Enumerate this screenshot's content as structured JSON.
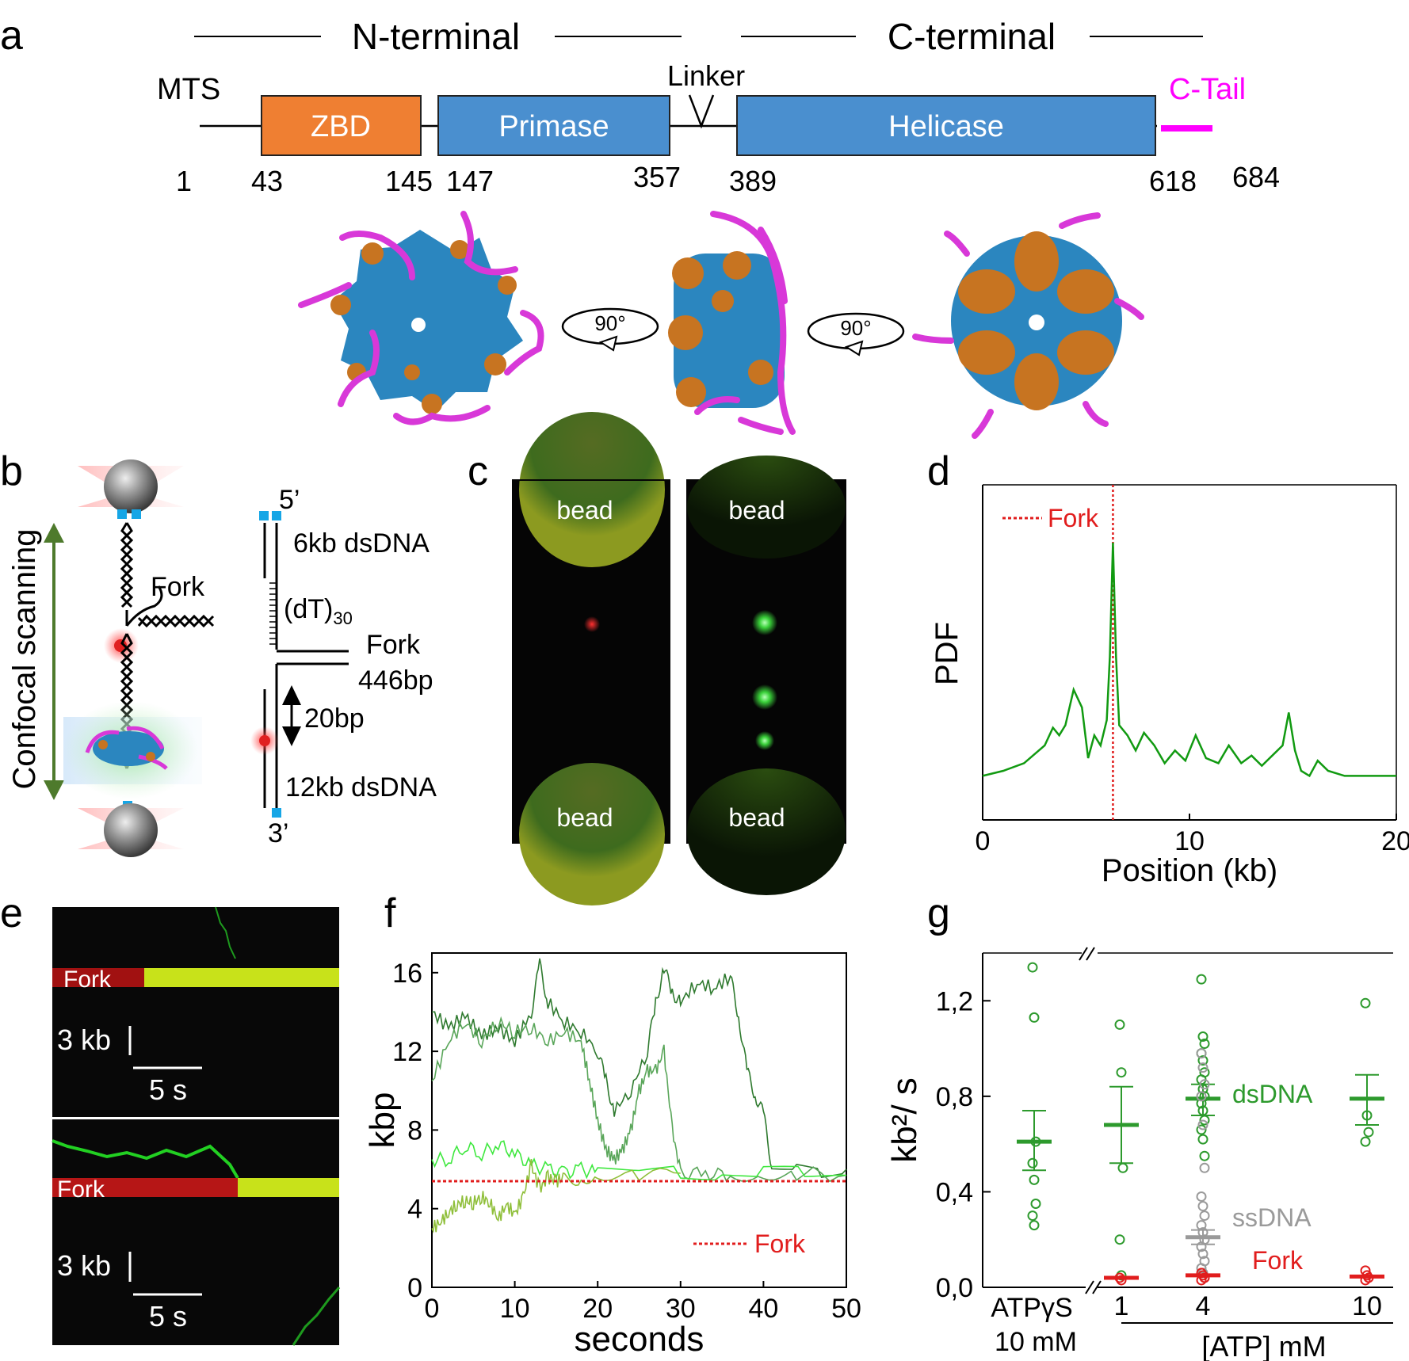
{
  "panels": {
    "a": "a",
    "b": "b",
    "c": "c",
    "d": "d",
    "e": "e",
    "f": "f",
    "g": "g"
  },
  "panel_a": {
    "n_terminal": "N-terminal",
    "c_terminal": "C-terminal",
    "mts": "MTS",
    "linker": "Linker",
    "c_tail": "C-Tail",
    "domains": {
      "zbd": "ZBD",
      "primase": "Primase",
      "helicase": "Helicase"
    },
    "positions": [
      "1",
      "43",
      "145",
      "147",
      "357",
      "389",
      "618",
      "684"
    ],
    "rotation": "90°",
    "colors": {
      "zbd": "#ef7f32",
      "primase": "#4a8fcf",
      "helicase": "#4a8fcf",
      "c_tail": "#ff00ff",
      "struct_blue": "#2b86bf",
      "struct_orange": "#c77421"
    }
  },
  "panel_b": {
    "confocal": "Confocal scanning",
    "fork": "Fork",
    "five_prime": "5’",
    "three_prime": "3’",
    "ds6": "6kb dsDNA",
    "dt_base": "(dT)",
    "dt_sub": "30",
    "fork_label": "Fork",
    "fork_bp": "446bp",
    "bp20": "20bp",
    "ds12": "12kb dsDNA"
  },
  "panel_c": {
    "bead": "bead"
  },
  "panel_d": {
    "legend": "Fork",
    "chart_data": {
      "type": "line",
      "xlabel": "Position (kb)",
      "ylabel": "PDF",
      "xlim": [
        0,
        20
      ],
      "xticks": [
        "0",
        "10",
        "20"
      ],
      "fork_position": 6.3,
      "series": [
        {
          "x": [
            0,
            1,
            2,
            3,
            3.4,
            3.7,
            4.0,
            4.4,
            4.8,
            5.1,
            5.4,
            5.7,
            6.0,
            6.15,
            6.3,
            6.45,
            6.6,
            7.0,
            7.4,
            7.8,
            8.3,
            8.8,
            9.3,
            9.8,
            10.3,
            10.8,
            11.4,
            11.9,
            12.5,
            13.0,
            13.5,
            14.0,
            14.5,
            14.8,
            15.1,
            15.4,
            15.8,
            16.2,
            16.7,
            17.5,
            18.5,
            20
          ],
          "y": [
            0.08,
            0.1,
            0.13,
            0.2,
            0.27,
            0.24,
            0.28,
            0.42,
            0.35,
            0.15,
            0.24,
            0.2,
            0.3,
            0.55,
            1.0,
            0.55,
            0.28,
            0.24,
            0.18,
            0.25,
            0.2,
            0.13,
            0.18,
            0.14,
            0.24,
            0.15,
            0.13,
            0.2,
            0.13,
            0.16,
            0.12,
            0.16,
            0.2,
            0.33,
            0.18,
            0.1,
            0.08,
            0.14,
            0.1,
            0.08,
            0.08,
            0.08
          ]
        }
      ],
      "colors": {
        "line": "#119a11",
        "fork": "#e11d1d"
      }
    }
  },
  "panel_e": {
    "fork": "Fork",
    "scale_kb": "3 kb",
    "scale_s": "5 s"
  },
  "panel_f": {
    "legend": "Fork",
    "chart_data": {
      "type": "line",
      "xlabel": "seconds",
      "ylabel": "kbp",
      "xlim": [
        0,
        50
      ],
      "ylim": [
        0,
        17
      ],
      "xticks": [
        "0",
        "10",
        "20",
        "30",
        "40",
        "50"
      ],
      "yticks": [
        "0",
        "4",
        "8",
        "12",
        "16"
      ],
      "fork_level": 5.4,
      "series": [
        {
          "x": [
            0,
            2,
            4,
            6,
            8,
            10,
            12,
            13,
            14,
            16,
            18,
            20,
            21,
            22,
            24,
            26,
            27,
            28,
            29,
            30,
            32,
            34,
            36,
            37,
            38,
            39,
            40,
            41,
            44,
            47,
            50
          ],
          "y": [
            14,
            13.2,
            13.8,
            12.8,
            13.2,
            12.5,
            14,
            16.4,
            14.5,
            13.5,
            13,
            12,
            10.5,
            9,
            10,
            12,
            14.5,
            16.2,
            15,
            14.5,
            15.5,
            15.2,
            15.8,
            13.8,
            11,
            9.8,
            8.8,
            6.2,
            6,
            5.9,
            6
          ],
          "color": "#2f7a2f"
        },
        {
          "x": [
            0,
            2,
            4,
            6,
            8,
            10,
            12,
            14,
            16,
            18,
            19,
            20,
            21,
            22,
            23,
            24,
            25,
            26,
            27,
            28,
            29,
            30,
            33,
            36,
            40,
            44,
            50
          ],
          "y": [
            10.5,
            12.5,
            13.5,
            12.5,
            13.5,
            13,
            13.2,
            12.5,
            13,
            12.5,
            10.5,
            8.5,
            7,
            6.5,
            7,
            8,
            10,
            11,
            11,
            12,
            8,
            5.8,
            5.8,
            5.7,
            5.8,
            5.8,
            5.7
          ],
          "color": "#5aa65a"
        },
        {
          "x": [
            0,
            2,
            4,
            6,
            8,
            10,
            12,
            14,
            16,
            18,
            20,
            25,
            30,
            35,
            40,
            45,
            50
          ],
          "y": [
            6.5,
            6.5,
            7.2,
            6.8,
            7.3,
            6.8,
            6.2,
            6,
            5.8,
            6,
            5.8,
            5.8,
            5.9,
            5.7,
            5.8,
            5.8,
            5.7
          ],
          "color": "#3fe83f"
        },
        {
          "x": [
            0,
            1,
            2,
            3,
            4,
            5,
            6,
            7,
            8,
            9,
            10,
            11,
            12,
            13,
            14,
            15,
            16,
            18,
            20,
            25,
            30
          ],
          "y": [
            3,
            3.3,
            3.8,
            4.2,
            4.4,
            4.3,
            4.6,
            4.3,
            3.5,
            4.2,
            3.7,
            4.6,
            6.2,
            5,
            5.6,
            5.4,
            5.6,
            5.5,
            5.8,
            5.6,
            5.8
          ],
          "color": "#8fbf3a"
        }
      ],
      "colors": {
        "fork": "#e11d1d"
      }
    }
  },
  "panel_g": {
    "labels": {
      "dsDNA": "dsDNA",
      "ssDNA": "ssDNA",
      "Fork": "Fork"
    },
    "cat_atpgs_1": "ATPγS",
    "cat_atpgs_2": "10 mM",
    "atp_axis": "[ATP] mM",
    "chart_data": {
      "type": "scatter",
      "ylabel": "kb²/ s",
      "ylim": [
        0,
        1.4
      ],
      "yticks": [
        "0,0",
        "0,4",
        "0,8",
        "1,2"
      ],
      "categories": [
        "ATPγS 10 mM",
        "1",
        "4",
        "10"
      ],
      "series": [
        {
          "name": "dsDNA",
          "points": {
            "ATPγS 10 mM": [
              1.34,
              1.13,
              0.61,
              0.52,
              0.45,
              0.35,
              0.3,
              0.26
            ],
            "1": [
              1.1,
              0.9,
              0.5,
              0.2,
              0.05
            ],
            "4": [
              1.29,
              1.05,
              1.02,
              0.98,
              0.95,
              0.9,
              0.87,
              0.83,
              0.8,
              0.77,
              0.74,
              0.7,
              0.66,
              0.62,
              0.55
            ],
            "10": [
              1.19,
              0.72,
              0.65,
              0.61
            ]
          },
          "mean": {
            "ATPγS 10 mM": 0.61,
            "1": 0.68,
            "4": 0.79,
            "10": 0.79
          },
          "err_low": {
            "ATPγS 10 mM": 0.49,
            "1": 0.52,
            "4": 0.72,
            "10": 0.68
          },
          "err_high": {
            "ATPγS 10 mM": 0.74,
            "1": 0.84,
            "4": 0.85,
            "10": 0.89
          }
        },
        {
          "name": "ssDNA",
          "points": {
            "4": [
              0.98,
              0.92,
              0.85,
              0.8,
              0.68,
              0.5,
              0.38,
              0.34,
              0.3,
              0.26,
              0.23,
              0.2,
              0.17,
              0.14,
              0.11,
              0.08,
              0.06,
              0.04
            ]
          },
          "mean": {
            "4": 0.21
          },
          "err_low": {
            "4": 0.18
          },
          "err_high": {
            "4": 0.24
          }
        },
        {
          "name": "Fork",
          "points": {
            "1": [
              0.04,
              0.03
            ],
            "4": [
              0.06,
              0.05,
              0.04,
              0.03
            ],
            "10": [
              0.07,
              0.05,
              0.04,
              0.03
            ]
          },
          "mean": {
            "1": 0.04,
            "4": 0.05,
            "10": 0.045
          }
        }
      ],
      "colors": {
        "dsDNA": "#2d9a2d",
        "ssDNA": "#9a9a9a",
        "Fork": "#e11d1d"
      }
    }
  }
}
